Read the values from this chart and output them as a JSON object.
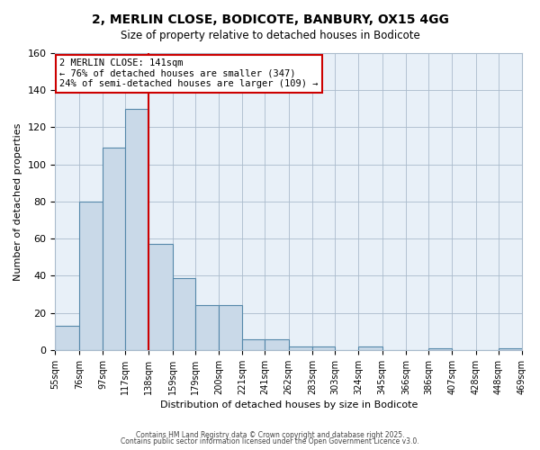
{
  "title": "2, MERLIN CLOSE, BODICOTE, BANBURY, OX15 4GG",
  "subtitle": "Size of property relative to detached houses in Bodicote",
  "xlabel": "Distribution of detached houses by size in Bodicote",
  "ylabel": "Number of detached properties",
  "property_size": 141,
  "bin_edges": [
    55,
    76,
    97,
    117,
    138,
    159,
    179,
    200,
    221,
    241,
    262,
    283,
    303,
    324,
    345,
    366,
    386,
    407,
    428,
    448,
    469
  ],
  "bar_heights": [
    13,
    80,
    109,
    130,
    57,
    39,
    24,
    24,
    6,
    6,
    2,
    2,
    0,
    2,
    0,
    0,
    1,
    0,
    0,
    1
  ],
  "bar_color": "#c9d9e8",
  "bar_edge_color": "#5588aa",
  "vline_color": "#cc0000",
  "vline_x": 138,
  "annotation_text": "2 MERLIN CLOSE: 141sqm\n← 76% of detached houses are smaller (347)\n24% of semi-detached houses are larger (109) →",
  "annotation_box_color": "#cc0000",
  "ylim": [
    0,
    160
  ],
  "yticks": [
    0,
    20,
    40,
    60,
    80,
    100,
    120,
    140,
    160
  ],
  "grid_color": "#aabbcc",
  "background_color": "#e8f0f8",
  "footer_line1": "Contains HM Land Registry data © Crown copyright and database right 2025.",
  "footer_line2": "Contains public sector information licensed under the Open Government Licence v3.0."
}
